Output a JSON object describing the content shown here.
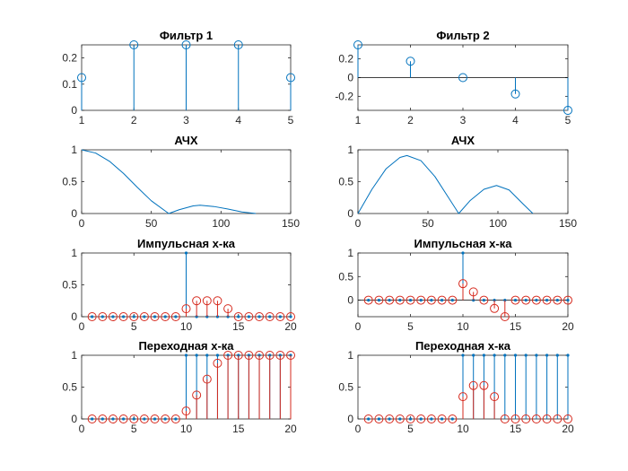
{
  "figure": {
    "background": "#ffffff",
    "colors": {
      "blue": "#0072BD",
      "red": "#D62A1E",
      "axis": "#262626"
    }
  },
  "chart_data": [
    {
      "type": "stem",
      "title": "Фильтр 1",
      "xlim": [
        1,
        5
      ],
      "ylim": [
        0,
        0.25
      ],
      "xticks": [
        "1",
        "2",
        "3",
        "4",
        "5"
      ],
      "yticks": [
        "0",
        "0.1",
        "0.2"
      ],
      "series": [
        {
          "color": "#0072BD",
          "marker": "o",
          "x": [
            1,
            2,
            3,
            4,
            5
          ],
          "y": [
            0.125,
            0.25,
            0.25,
            0.25,
            0.125
          ]
        }
      ]
    },
    {
      "type": "stem",
      "title": "Фильтр 2",
      "xlim": [
        1,
        5
      ],
      "ylim": [
        -0.35,
        0.35
      ],
      "zero_line": true,
      "xticks": [
        "1",
        "2",
        "3",
        "4",
        "5"
      ],
      "yticks": [
        "-0.2",
        "0",
        "0.2"
      ],
      "series": [
        {
          "color": "#0072BD",
          "marker": "o",
          "x": [
            1,
            2,
            3,
            4,
            5
          ],
          "y": [
            0.35,
            0.175,
            0,
            -0.175,
            -0.35
          ]
        }
      ]
    },
    {
      "type": "line",
      "title": "АЧХ",
      "xlim": [
        0,
        150
      ],
      "ylim": [
        0,
        1
      ],
      "xticks": [
        "0",
        "50",
        "100",
        "150"
      ],
      "yticks": [
        "0",
        "0.5",
        "1"
      ],
      "series": [
        {
          "color": "#0072BD",
          "x": [
            0,
            10,
            20,
            30,
            40,
            50,
            62.5,
            70,
            80,
            85,
            95,
            105,
            115,
            125
          ],
          "y": [
            1,
            0.95,
            0.82,
            0.63,
            0.41,
            0.2,
            0,
            0.06,
            0.12,
            0.13,
            0.11,
            0.07,
            0.025,
            0
          ]
        }
      ]
    },
    {
      "type": "line",
      "title": "АЧХ",
      "xlim": [
        0,
        150
      ],
      "ylim": [
        0,
        1
      ],
      "xticks": [
        "0",
        "50",
        "100",
        "150"
      ],
      "yticks": [
        "0",
        "0.5",
        "1"
      ],
      "series": [
        {
          "color": "#0072BD",
          "x": [
            0,
            10,
            20,
            30,
            35,
            45,
            55,
            65,
            72,
            80,
            90,
            99,
            108,
            118,
            125
          ],
          "y": [
            0,
            0.38,
            0.7,
            0.88,
            0.91,
            0.83,
            0.58,
            0.24,
            0,
            0.2,
            0.38,
            0.44,
            0.37,
            0.15,
            0
          ]
        }
      ]
    },
    {
      "type": "stem",
      "title": "Импульсная х-ка",
      "xlim": [
        0,
        20
      ],
      "ylim": [
        0,
        1
      ],
      "xticks": [
        "0",
        "5",
        "10",
        "15",
        "20"
      ],
      "yticks": [
        "0",
        "0.5",
        "1"
      ],
      "series": [
        {
          "color": "#0072BD",
          "marker": "dot",
          "x": [
            1,
            2,
            3,
            4,
            5,
            6,
            7,
            8,
            9,
            10,
            11,
            12,
            13,
            14,
            15,
            16,
            17,
            18,
            19,
            20
          ],
          "y": [
            0,
            0,
            0,
            0,
            0,
            0,
            0,
            0,
            0,
            1,
            0,
            0,
            0,
            0,
            0,
            0,
            0,
            0,
            0,
            0
          ]
        },
        {
          "color": "#D62A1E",
          "marker": "o",
          "x": [
            1,
            2,
            3,
            4,
            5,
            6,
            7,
            8,
            9,
            10,
            11,
            12,
            13,
            14,
            15,
            16,
            17,
            18,
            19,
            20
          ],
          "y": [
            0,
            0,
            0,
            0,
            0,
            0,
            0,
            0,
            0,
            0.125,
            0.25,
            0.25,
            0.25,
            0.125,
            0,
            0,
            0,
            0,
            0,
            0
          ]
        }
      ]
    },
    {
      "type": "stem",
      "title": "Импульсная х-ка",
      "xlim": [
        0,
        20
      ],
      "ylim": [
        -0.35,
        1
      ],
      "zero_line": true,
      "xticks": [
        "0",
        "5",
        "10",
        "15",
        "20"
      ],
      "yticks": [
        "0",
        "0.5",
        "1"
      ],
      "series": [
        {
          "color": "#0072BD",
          "marker": "dot",
          "x": [
            1,
            2,
            3,
            4,
            5,
            6,
            7,
            8,
            9,
            10,
            11,
            12,
            13,
            14,
            15,
            16,
            17,
            18,
            19,
            20
          ],
          "y": [
            0,
            0,
            0,
            0,
            0,
            0,
            0,
            0,
            0,
            1,
            0,
            0,
            0,
            0,
            0,
            0,
            0,
            0,
            0,
            0
          ]
        },
        {
          "color": "#D62A1E",
          "marker": "o",
          "x": [
            1,
            2,
            3,
            4,
            5,
            6,
            7,
            8,
            9,
            10,
            11,
            12,
            13,
            14,
            15,
            16,
            17,
            18,
            19,
            20
          ],
          "y": [
            0,
            0,
            0,
            0,
            0,
            0,
            0,
            0,
            0,
            0.35,
            0.175,
            0,
            -0.175,
            -0.35,
            0,
            0,
            0,
            0,
            0,
            0
          ]
        }
      ]
    },
    {
      "type": "stem",
      "title": "Переходная х-ка",
      "xlim": [
        0,
        20
      ],
      "ylim": [
        0,
        1
      ],
      "xticks": [
        "0",
        "5",
        "10",
        "15",
        "20"
      ],
      "yticks": [
        "0",
        "0.5",
        "1"
      ],
      "series": [
        {
          "color": "#0072BD",
          "marker": "dot",
          "x": [
            1,
            2,
            3,
            4,
            5,
            6,
            7,
            8,
            9,
            10,
            11,
            12,
            13,
            14,
            15,
            16,
            17,
            18,
            19,
            20
          ],
          "y": [
            0,
            0,
            0,
            0,
            0,
            0,
            0,
            0,
            0,
            1,
            1,
            1,
            1,
            1,
            1,
            1,
            1,
            1,
            1,
            1
          ]
        },
        {
          "color": "#D62A1E",
          "marker": "o",
          "x": [
            1,
            2,
            3,
            4,
            5,
            6,
            7,
            8,
            9,
            10,
            11,
            12,
            13,
            14,
            15,
            16,
            17,
            18,
            19,
            20
          ],
          "y": [
            0,
            0,
            0,
            0,
            0,
            0,
            0,
            0,
            0,
            0.125,
            0.375,
            0.625,
            0.875,
            1,
            1,
            1,
            1,
            1,
            1,
            1
          ]
        }
      ]
    },
    {
      "type": "stem",
      "title": "Переходная х-ка",
      "xlim": [
        0,
        20
      ],
      "ylim": [
        0,
        1
      ],
      "xticks": [
        "0",
        "5",
        "10",
        "15",
        "20"
      ],
      "yticks": [
        "0",
        "0.5",
        "1"
      ],
      "series": [
        {
          "color": "#0072BD",
          "marker": "dot",
          "x": [
            1,
            2,
            3,
            4,
            5,
            6,
            7,
            8,
            9,
            10,
            11,
            12,
            13,
            14,
            15,
            16,
            17,
            18,
            19,
            20
          ],
          "y": [
            0,
            0,
            0,
            0,
            0,
            0,
            0,
            0,
            0,
            1,
            1,
            1,
            1,
            1,
            1,
            1,
            1,
            1,
            1,
            1
          ]
        },
        {
          "color": "#D62A1E",
          "marker": "o",
          "x": [
            1,
            2,
            3,
            4,
            5,
            6,
            7,
            8,
            9,
            10,
            11,
            12,
            13,
            14,
            15,
            16,
            17,
            18,
            19,
            20
          ],
          "y": [
            0,
            0,
            0,
            0,
            0,
            0,
            0,
            0,
            0,
            0.35,
            0.525,
            0.525,
            0.35,
            0,
            0,
            0,
            0,
            0,
            0,
            0
          ]
        }
      ]
    }
  ]
}
